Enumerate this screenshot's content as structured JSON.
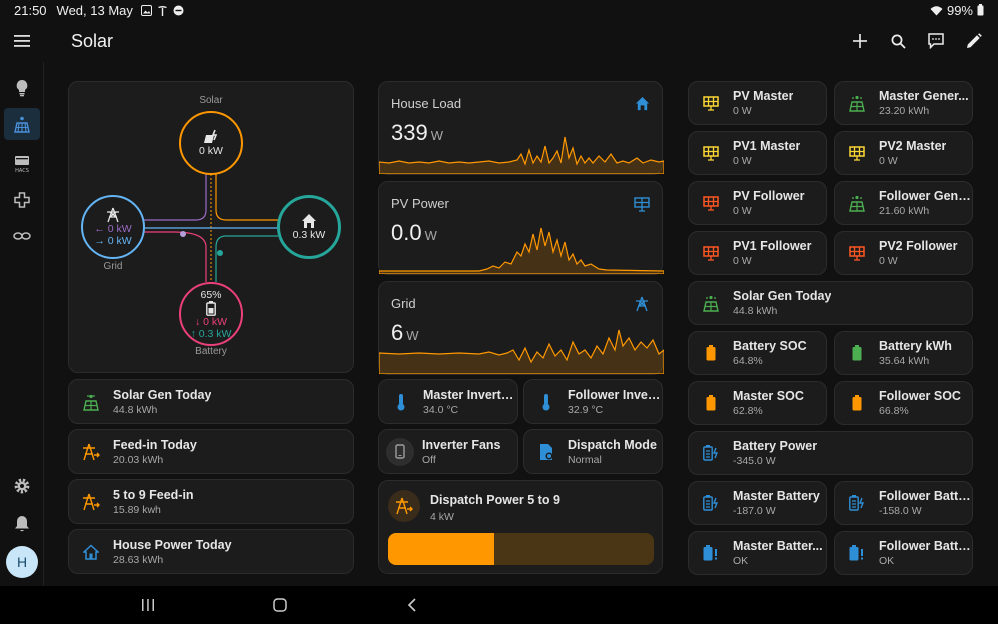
{
  "status": {
    "time": "21:50",
    "date": "Wed, 13 May",
    "battery_pct": "99%"
  },
  "header": {
    "title": "Solar"
  },
  "colors": {
    "accent_orange": "#ff9800",
    "accent_blue": "#2f8fd6",
    "yellow": "#fdd835",
    "green": "#4caf50",
    "red_orange": "#ff5722",
    "grid_blue": "#64b5f6",
    "home_teal": "#26a69a",
    "battery_pink": "#ec407a",
    "solar_orange": "#ff9800"
  },
  "energy_flow": {
    "solar_label": "Solar",
    "solar_value": "0 kW",
    "grid_label": "Grid",
    "grid_in": "0 kW",
    "grid_out": "0 kW",
    "home_value": "0.3 kW",
    "battery_pct": "65%",
    "battery_in": "0 kW",
    "battery_out": "0.3 kW",
    "battery_label": "Battery"
  },
  "left_tiles": [
    {
      "name": "Solar Gen Today",
      "value": "44.8 kWh",
      "icon": "solar-panel-icon"
    },
    {
      "name": "Feed-in Today",
      "value": "20.03 kWh",
      "icon": "transmission-tower-export-icon"
    },
    {
      "name": "5 to 9 Feed-in",
      "value": "15.89 kwh",
      "icon": "transmission-tower-export-icon"
    },
    {
      "name": "House Power Today",
      "value": "28.63 kWh",
      "icon": "home-outline-icon"
    }
  ],
  "graphs": [
    {
      "name": "House Load",
      "value": "339",
      "unit": "W",
      "icon": "home-icon"
    },
    {
      "name": "PV Power",
      "value": "0.0",
      "unit": "W",
      "icon": "solar-panel-icon"
    },
    {
      "name": "Grid",
      "value": "6",
      "unit": "W",
      "icon": "transmission-tower-icon"
    }
  ],
  "mid_tiles": {
    "master_inverter": {
      "name": "Master Inverte...",
      "value": "34.0 °C"
    },
    "follower_inverter": {
      "name": "Follower Inver...",
      "value": "32.9 °C"
    },
    "inverter_fans": {
      "name": "Inverter Fans",
      "value": "Off"
    },
    "dispatch_mode": {
      "name": "Dispatch Mode",
      "value": "Normal"
    }
  },
  "dispatch": {
    "name": "Dispatch Power 5 to 9",
    "value": "4 kW",
    "level_fraction": 0.4
  },
  "right_tiles": [
    {
      "name": "PV Master",
      "value": "0 W"
    },
    {
      "name": "Master Gener...",
      "value": "23.20 kWh"
    },
    {
      "name": "PV1 Master",
      "value": "0 W"
    },
    {
      "name": "PV2 Master",
      "value": "0 W"
    },
    {
      "name": "PV Follower",
      "value": "0 W"
    },
    {
      "name": "Follower Gene...",
      "value": "21.60 kWh"
    },
    {
      "name": "PV1 Follower",
      "value": "0 W"
    },
    {
      "name": "PV2 Follower",
      "value": "0 W"
    },
    {
      "name": "Solar Gen Today",
      "value": "44.8 kWh"
    },
    {
      "name": "Battery SOC",
      "value": "64.8%"
    },
    {
      "name": "Battery kWh",
      "value": "35.64 kWh"
    },
    {
      "name": "Master SOC",
      "value": "62.8%"
    },
    {
      "name": "Follower SOC",
      "value": "66.8%"
    },
    {
      "name": "Battery Power",
      "value": "-345.0 W"
    },
    {
      "name": "Master Battery",
      "value": "-187.0 W"
    },
    {
      "name": "Follower Batte...",
      "value": "-158.0 W"
    },
    {
      "name": "Master Batter...",
      "value": "OK"
    },
    {
      "name": "Follower Batte...",
      "value": "OK"
    }
  ]
}
